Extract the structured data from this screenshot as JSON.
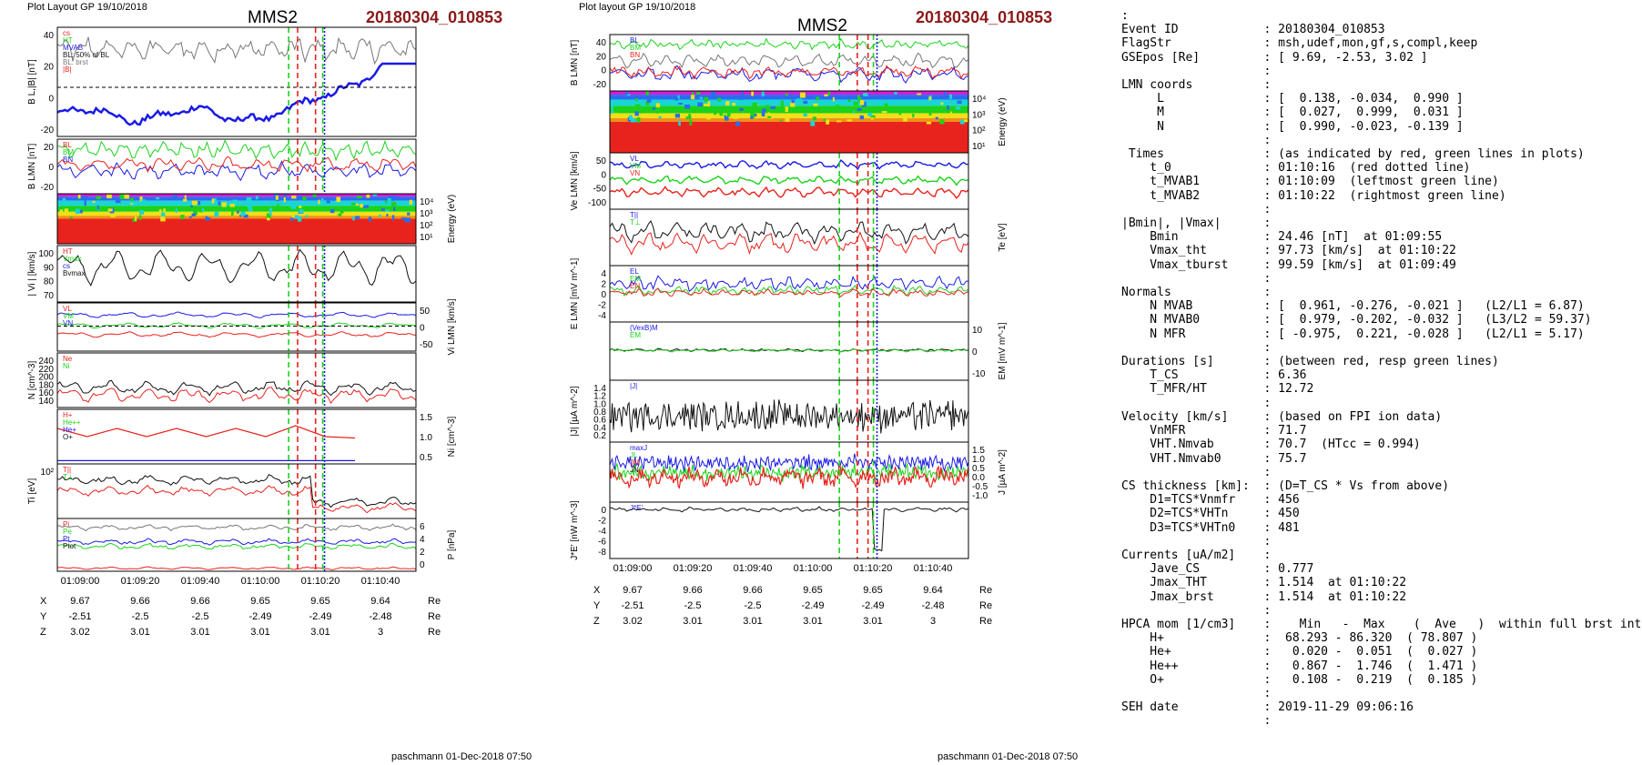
{
  "left_panel": {
    "layout_label": "Plot Layout GP 19/10/2018",
    "spacecraft": "MMS2",
    "event": "20180304_010853",
    "footer": "paschmann 01-Dec-2018 07:50",
    "time_ticks": [
      "01:09:00",
      "01:09:20",
      "01:09:40",
      "01:10:00",
      "01:10:20",
      "01:10:40"
    ],
    "coords": {
      "rows": [
        {
          "name": "X",
          "values": [
            "9.67",
            "9.66",
            "9.66",
            "9.65",
            "9.65",
            "9.64"
          ],
          "unit": "Re"
        },
        {
          "name": "Y",
          "values": [
            "-2.51",
            "-2.5",
            "-2.5",
            "-2.49",
            "-2.49",
            "-2.48"
          ],
          "unit": "Re"
        },
        {
          "name": "Z",
          "values": [
            "3.02",
            "3.01",
            "3.01",
            "3.01",
            "3.01",
            "3"
          ],
          "unit": "Re"
        }
      ]
    },
    "panels": [
      {
        "ylabel": "B L,|B| [nT]",
        "ticks": [
          "40",
          "20",
          "0",
          "-20"
        ],
        "legend": [
          "cs",
          "HT",
          "MVAB",
          "BL: 50% of BL",
          "BL: brst",
          "|B|"
        ]
      },
      {
        "ylabel": "B LMN [nT]",
        "ticks": [
          "20",
          "0",
          "-20"
        ],
        "legend": [
          "BL",
          "BM",
          "BN"
        ]
      },
      {
        "ylabel_right": "Energy (eV)",
        "ticks_right": [
          "10^4",
          "10^3",
          "10^2",
          "10^1"
        ]
      },
      {
        "ylabel": "| Vi | [km/s]",
        "ticks": [
          "100",
          "90",
          "80",
          "70"
        ],
        "legend": [
          "HT",
          "Vmax",
          "cs",
          "Bvmax"
        ]
      },
      {
        "ylabel_right": "Vi LMN [km/s]",
        "ticks_right": [
          "50",
          "0",
          "-50"
        ],
        "legend": [
          "VL",
          "VM",
          "VN"
        ]
      },
      {
        "ylabel": "N [cm^-3]",
        "ticks": [
          "240",
          "220",
          "200",
          "180",
          "160",
          "140"
        ],
        "legend": [
          "Ne",
          "Ni"
        ]
      },
      {
        "ylabel_right": "Ni [cm^-3]",
        "ticks_right": [
          "1.5",
          "1.0",
          "0.5"
        ],
        "legend": [
          "H+",
          "He++",
          "He+",
          "O+"
        ]
      },
      {
        "ylabel": "Ti [eV]",
        "ticks": [
          "10^2"
        ],
        "legend": [
          "T||",
          "T⊥"
        ]
      },
      {
        "ylabel_right": "P [nPa]",
        "ticks_right": [
          "6",
          "4",
          "2",
          "0"
        ],
        "legend": [
          "Pi",
          "Pe",
          "Pt",
          "Ptot"
        ]
      }
    ]
  },
  "middle_panel": {
    "layout_label": "Plot layout GP 19/10/2018",
    "spacecraft": "MMS2",
    "event": "20180304_010853",
    "footer": "paschmann 01-Dec-2018 07:50",
    "time_ticks": [
      "01:09:00",
      "01:09:20",
      "01:09:40",
      "01:10:00",
      "01:10:20",
      "01:10:40"
    ],
    "coords": {
      "rows": [
        {
          "name": "X",
          "values": [
            "9.67",
            "9.66",
            "9.66",
            "9.65",
            "9.65",
            "9.64"
          ],
          "unit": "Re"
        },
        {
          "name": "Y",
          "values": [
            "-2.51",
            "-2.5",
            "-2.5",
            "-2.49",
            "-2.49",
            "-2.48"
          ],
          "unit": "Re"
        },
        {
          "name": "Z",
          "values": [
            "3.02",
            "3.01",
            "3.01",
            "3.01",
            "3.01",
            "3"
          ],
          "unit": "Re"
        }
      ]
    },
    "panels": [
      {
        "ylabel": "B LMN [nT]",
        "ticks": [
          "40",
          "20",
          "0",
          "-20"
        ],
        "legend": [
          "BL",
          "BM",
          "BN"
        ]
      },
      {
        "ylabel_right": "Energy (eV)",
        "ticks_right": [
          "10^4",
          "10^3",
          "10^2",
          "10^1"
        ]
      },
      {
        "ylabel": "Ve LMN [km/s]",
        "ticks": [
          "50",
          "0",
          "-50",
          "-100"
        ],
        "legend": [
          "VL",
          "VM",
          "VN"
        ]
      },
      {
        "ylabel_right": "Te [eV]",
        "legend": [
          "T||",
          "T⊥"
        ]
      },
      {
        "ylabel": "E LMN [mV m^-1]",
        "ticks": [
          "4",
          "2",
          "0",
          "-2",
          "-4"
        ],
        "legend": [
          "EL",
          "EM",
          "EN"
        ]
      },
      {
        "ylabel_right": "EM [mV m^-1]",
        "ticks_right": [
          "10",
          "0",
          "-10"
        ],
        "legend": [
          "(VexB)M",
          "EM"
        ]
      },
      {
        "ylabel": "|J| [µA m^-2]",
        "ticks": [
          "1.4",
          "1.2",
          "1.0",
          "0.8",
          "0.6",
          "0.4",
          "0.2"
        ],
        "legend": [
          "|J|"
        ]
      },
      {
        "ylabel_right": "J [µA m^-2]",
        "ticks_right": [
          "1.5",
          "1.0",
          "0.5",
          "0.0",
          "-0.5",
          "-1.0"
        ],
        "legend": [
          "maxJ",
          "JL",
          "JM",
          "JN"
        ]
      },
      {
        "ylabel": "J*E' [nW m^-3]",
        "ticks": [
          "0",
          "-2",
          "-4",
          "-6",
          "-8"
        ],
        "legend": [
          "J*E'"
        ]
      }
    ]
  },
  "right_panel": {
    "lines": [
      ":",
      "Event ID            : 20180304_010853",
      "FlagStr             : msh,udef,mon,gf,s,compl,keep",
      "GSEpos [Re]         : [ 9.69, -2.53, 3.02 ]",
      "                    :",
      "LMN coords          :",
      "     L              : [  0.138, -0.034,  0.990 ]",
      "     M              : [  0.027,  0.999,  0.031 ]",
      "     N              : [  0.990, -0.023, -0.139 ]",
      "                    :",
      " Times              : (as indicated by red, green lines in plots)",
      "    t_0             : 01:10:16  (red dotted line)",
      "    t_MVAB1         : 01:10:09  (leftmost green line)",
      "    t_MVAB2         : 01:10:22  (rightmost green line)",
      "                    :",
      "|Bmin|, |Vmax|      :",
      "    Bmin            : 24.46 [nT]  at 01:09:55",
      "    Vmax_tht        : 97.73 [km/s]  at 01:10:22",
      "    Vmax_tburst     : 99.59 [km/s]  at 01:09:49",
      "                    :",
      "Normals             :",
      "    N MVAB          : [  0.961, -0.276, -0.021 ]   (L2/L1 = 6.87)",
      "    N MVAB0         : [  0.979, -0.202, -0.032 ]   (L3/L2 = 59.37)",
      "    N MFR           : [ -0.975,  0.221, -0.028 ]   (L2/L1 = 5.17)",
      "                    :",
      "Durations [s]       : (between red, resp green lines)",
      "    T_CS            : 6.36",
      "    T_MFR/HT        : 12.72",
      "                    :",
      "Velocity [km/s]     : (based on FPI ion data)",
      "    VnMFR           : 71.7",
      "    VHT.Nmvab       : 70.7  (HTcc = 0.994)",
      "    VHT.Nmvab0      : 75.7",
      "                    :",
      "CS thickness [km]:  : (D=T_CS * Vs from above)",
      "    D1=TCS*Vnmfr    : 456",
      "    D2=TCS*VHTn     : 450",
      "    D3=TCS*VHTn0    : 481",
      "                    :",
      "Currents [uA/m2]    :",
      "    Jave_CS         : 0.777",
      "    Jmax_THT        : 1.514  at 01:10:22",
      "    Jmax_brst       : 1.514  at 01:10:22",
      "                    :",
      "HPCA mom [1/cm3]    :    Min   -  Max    (  Ave   )  within full brst int",
      "    H+              :  68.293 - 86.320  ( 78.807 )",
      "    He+             :   0.020 -  0.051  (  0.027 )",
      "    He++            :   0.867 -  1.746  (  1.471 )",
      "    O+              :   0.108 -  0.219  (  0.185 )",
      "                    :",
      "SEH date            : 2019-11-29 09:06:16",
      "                    :"
    ]
  },
  "colors": {
    "red": "#e8231e",
    "green": "#1cd21c",
    "blue": "#1a1ae6",
    "black": "#111111",
    "gray": "#777777",
    "cyan": "#18b6d6",
    "magenta": "#d61cd6",
    "event": "#8b1a1a"
  }
}
